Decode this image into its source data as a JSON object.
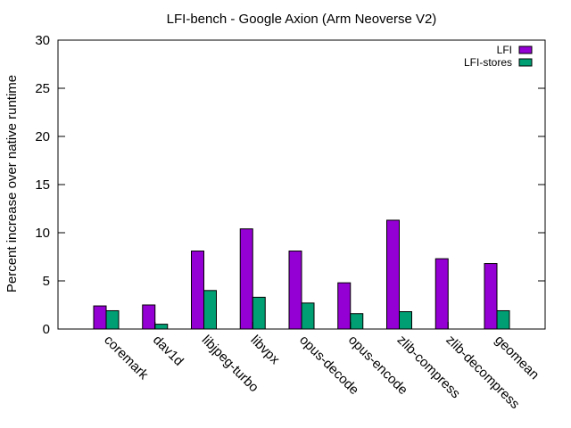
{
  "chart_data": {
    "type": "bar",
    "title": "LFI-bench - Google Axion (Arm Neoverse V2)",
    "xlabel": "",
    "ylabel": "Percent increase over native runtime",
    "ylim": [
      0,
      30
    ],
    "yticks": [
      0,
      5,
      10,
      15,
      20,
      25,
      30
    ],
    "categories": [
      "coremark",
      "dav1d",
      "libjpeg-turbo",
      "libvpx",
      "opus-decode",
      "opus-encode",
      "zlib-compress",
      "zlib-decompress",
      "geomean"
    ],
    "series": [
      {
        "name": "LFI",
        "color": "#9400d3",
        "values": [
          2.4,
          2.5,
          8.1,
          10.4,
          8.1,
          4.8,
          11.3,
          7.3,
          6.8
        ]
      },
      {
        "name": "LFI-stores",
        "color": "#009e73",
        "values": [
          1.9,
          0.5,
          4.0,
          3.3,
          2.7,
          1.6,
          1.8,
          0.0,
          1.9
        ]
      }
    ],
    "legend_position": "top-right",
    "grid": false
  }
}
